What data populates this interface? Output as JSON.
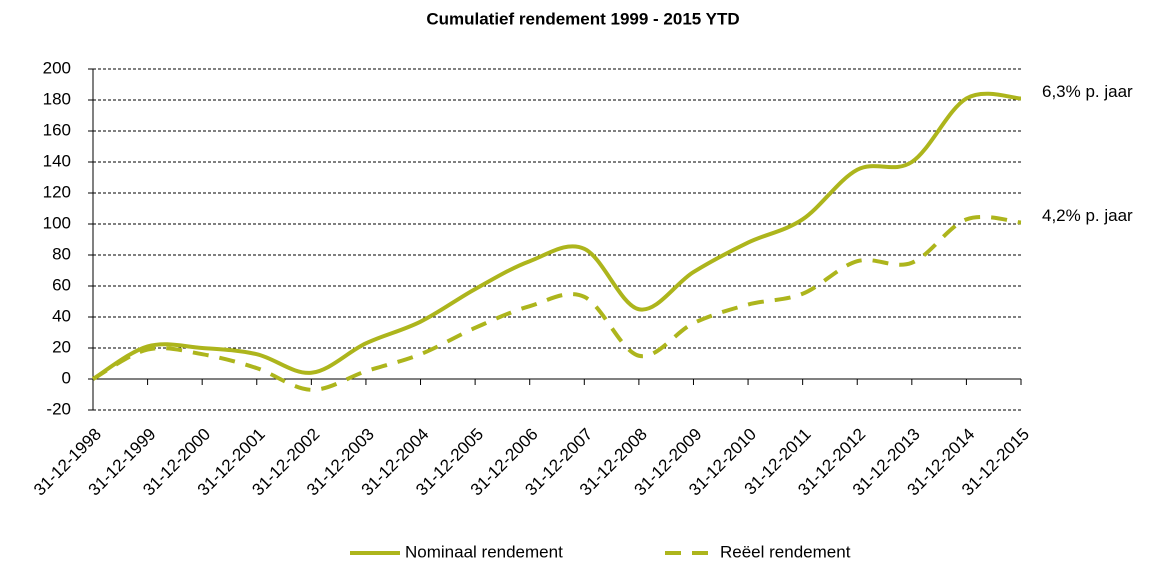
{
  "chart_data": {
    "type": "line",
    "title": "Cumulatief rendement 1999 - 2015 YTD",
    "categories": [
      "31-12-1998",
      "31-12-1999",
      "31-12-2000",
      "31-12-2001",
      "31-12-2002",
      "31-12-2003",
      "31-12-2004",
      "31-12-2005",
      "31-12-2006",
      "31-12-2007",
      "31-12-2008",
      "31-12-2009",
      "31-12-2010",
      "31-12-2011",
      "31-12-2012",
      "31-12-2013",
      "31-12-2014",
      "31-12-2015"
    ],
    "series": [
      {
        "name": "Nominaal rendement",
        "color": "#adb51c",
        "dashed": false,
        "values": [
          0,
          21,
          20,
          16,
          4,
          23,
          37,
          58,
          76,
          84,
          45,
          69,
          88,
          103,
          135,
          140,
          181,
          181
        ]
      },
      {
        "name": "Reëel rendement",
        "color": "#adb51c",
        "dashed": true,
        "values": [
          0,
          19,
          16,
          7,
          -7,
          5,
          16,
          33,
          47,
          53,
          15,
          36,
          48,
          55,
          76,
          75,
          103,
          101
        ]
      }
    ],
    "annotations": [
      "6,3% p. jaar",
      "4,2% p. jaar"
    ],
    "ylim": [
      -20,
      200
    ],
    "yticks": [
      -20,
      0,
      20,
      40,
      60,
      80,
      100,
      120,
      140,
      160,
      180,
      200
    ],
    "grid": true,
    "legend": "bottom"
  }
}
